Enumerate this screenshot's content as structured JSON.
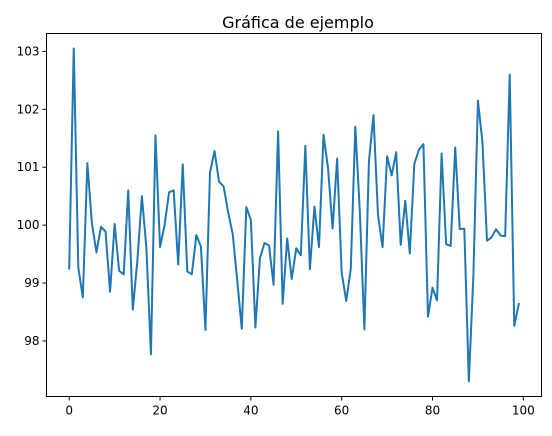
{
  "chart_data": {
    "type": "line",
    "title": "Gráfica de ejemplo",
    "xlabel": "",
    "ylabel": "",
    "xlim": [
      -5,
      104
    ],
    "ylim": [
      97.04,
      103.31
    ],
    "x_ticks": [
      0,
      20,
      40,
      60,
      80,
      100
    ],
    "y_ticks": [
      98,
      99,
      100,
      101,
      102,
      103
    ],
    "grid": false,
    "colors": {
      "series": "#1f77b4",
      "axes": "#000000",
      "background": "#ffffff"
    },
    "series": [
      {
        "x": [
          0,
          1,
          2,
          3,
          4,
          5,
          6,
          7,
          8,
          9,
          10,
          11,
          12,
          13,
          14,
          15,
          16,
          17,
          18,
          19,
          20,
          21,
          22,
          23,
          24,
          25,
          26,
          27,
          28,
          29,
          30,
          31,
          32,
          33,
          34,
          35,
          36,
          37,
          38,
          39,
          40,
          41,
          42,
          43,
          44,
          45,
          46,
          47,
          48,
          49,
          50,
          51,
          52,
          53,
          54,
          55,
          56,
          57,
          58,
          59,
          60,
          61,
          62,
          63,
          64,
          65,
          66,
          67,
          68,
          69,
          70,
          71,
          72,
          73,
          74,
          75,
          76,
          77,
          78,
          79,
          80,
          81,
          82,
          83,
          84,
          85,
          86,
          87,
          88,
          89,
          90,
          91,
          92,
          93,
          94,
          95,
          96,
          97,
          98,
          99
        ],
        "values": [
          99.25,
          103.05,
          99.27,
          98.75,
          101.07,
          100.03,
          99.53,
          99.97,
          99.89,
          98.85,
          100.02,
          99.21,
          99.15,
          100.6,
          98.54,
          99.38,
          100.5,
          99.6,
          97.77,
          101.55,
          99.62,
          100.0,
          100.57,
          100.6,
          99.32,
          101.05,
          99.2,
          99.15,
          99.83,
          99.63,
          98.19,
          100.91,
          101.28,
          100.75,
          100.67,
          100.22,
          99.85,
          99.05,
          98.21,
          100.31,
          100.09,
          98.23,
          99.43,
          99.69,
          99.65,
          98.97,
          101.62,
          98.64,
          99.77,
          99.07,
          99.6,
          99.48,
          101.37,
          99.24,
          100.32,
          99.62,
          101.56,
          100.98,
          99.94,
          101.15,
          99.18,
          98.69,
          99.24,
          101.7,
          100.23,
          98.2,
          101.1,
          101.9,
          100.17,
          99.62,
          101.19,
          100.86,
          101.26,
          99.66,
          100.42,
          99.51,
          101.06,
          101.3,
          101.4,
          98.42,
          98.92,
          98.7,
          101.24,
          99.67,
          99.64,
          101.34,
          99.93,
          99.94,
          97.3,
          99.13,
          102.15,
          101.43,
          99.73,
          99.79,
          99.93,
          99.82,
          99.81,
          102.6,
          98.26,
          98.64
        ]
      }
    ]
  }
}
